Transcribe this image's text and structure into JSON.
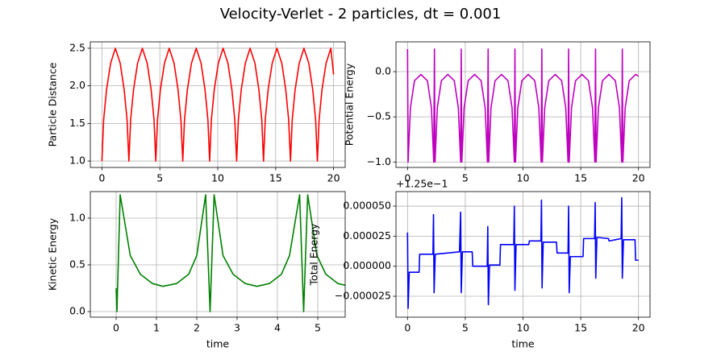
{
  "title": "Velocity-Verlet - 2 particles, dt = 0.001",
  "chart_data": [
    {
      "type": "line",
      "ylabel": "Particle Distance",
      "color": "#ff0000",
      "grid": true,
      "xlim": [
        -1,
        21
      ],
      "ylim": [
        0.915,
        2.585
      ],
      "xticks": [
        0,
        5,
        10,
        15,
        20
      ],
      "yticks": [
        {
          "value": 1,
          "label": "1.0"
        },
        1.5,
        {
          "value": 2,
          "label": "2.0"
        },
        2.5
      ],
      "x": [
        0,
        0.15,
        0.4,
        0.75,
        1.16,
        1.58,
        1.92,
        2.17,
        2.33,
        2.48,
        2.73,
        3.08,
        3.49,
        3.91,
        4.25,
        4.5,
        4.65,
        4.8,
        5.05,
        5.4,
        5.81,
        6.23,
        6.57,
        6.82,
        6.98,
        7.13,
        7.38,
        7.73,
        8.14,
        8.56,
        8.9,
        9.15,
        9.3,
        9.45,
        9.7,
        10.05,
        10.46,
        10.88,
        11.22,
        11.47,
        11.63,
        11.78,
        12.03,
        12.38,
        12.79,
        13.21,
        13.55,
        13.8,
        13.95,
        14.1,
        14.35,
        14.7,
        15.11,
        15.53,
        15.87,
        16.12,
        16.28,
        16.43,
        16.68,
        17.03,
        17.44,
        17.86,
        18.2,
        18.45,
        18.6,
        18.75,
        19.0,
        19.35,
        19.76,
        20.0
      ],
      "values": [
        1.0,
        1.55,
        1.95,
        2.3,
        2.5,
        2.3,
        1.95,
        1.55,
        1.0,
        1.55,
        1.95,
        2.3,
        2.5,
        2.3,
        1.95,
        1.55,
        1.0,
        1.55,
        1.95,
        2.3,
        2.5,
        2.3,
        1.95,
        1.55,
        1.0,
        1.55,
        1.95,
        2.3,
        2.5,
        2.3,
        1.95,
        1.55,
        1.0,
        1.55,
        1.95,
        2.3,
        2.5,
        2.3,
        1.95,
        1.55,
        1.0,
        1.55,
        1.95,
        2.3,
        2.5,
        2.3,
        1.95,
        1.55,
        1.0,
        1.55,
        1.95,
        2.3,
        2.5,
        2.3,
        1.95,
        1.55,
        1.0,
        1.55,
        1.95,
        2.3,
        2.5,
        2.3,
        1.95,
        1.55,
        1.0,
        1.55,
        1.95,
        2.3,
        2.5,
        2.15
      ]
    },
    {
      "type": "line",
      "ylabel": "Potential Energy",
      "color": "#bf00bf",
      "grid": true,
      "xlim": [
        -1,
        21
      ],
      "ylim": [
        -1.06,
        0.33
      ],
      "xticks": [
        0,
        5,
        10,
        15,
        20
      ],
      "yticks": [
        {
          "value": -1,
          "label": "−1.0"
        },
        {
          "value": -0.5,
          "label": "−0.5"
        },
        {
          "value": 0,
          "label": "0.0"
        }
      ],
      "x": [
        0,
        0.05,
        0.25,
        0.6,
        1.16,
        1.72,
        2.07,
        2.27,
        2.33,
        2.38,
        2.58,
        2.93,
        3.49,
        4.05,
        4.4,
        4.6,
        4.65,
        4.7,
        4.9,
        5.25,
        5.81,
        6.37,
        6.72,
        6.92,
        6.98,
        7.03,
        7.23,
        7.58,
        8.14,
        8.7,
        9.05,
        9.25,
        9.3,
        9.35,
        9.55,
        9.9,
        10.46,
        11.02,
        11.37,
        11.57,
        11.63,
        11.68,
        11.88,
        12.23,
        12.79,
        13.35,
        13.7,
        13.9,
        13.95,
        14.0,
        14.2,
        14.55,
        15.11,
        15.67,
        16.02,
        16.22,
        16.28,
        16.33,
        16.53,
        16.88,
        17.44,
        18.0,
        18.35,
        18.55,
        18.6,
        18.65,
        18.85,
        19.2,
        19.76,
        20.0
      ],
      "values": [
        0.25,
        -1.0,
        -0.4,
        -0.1,
        -0.03,
        -0.1,
        -0.4,
        -1.0,
        0.25,
        -1.0,
        -0.4,
        -0.1,
        -0.03,
        -0.1,
        -0.4,
        -1.0,
        0.25,
        -1.0,
        -0.4,
        -0.1,
        -0.03,
        -0.1,
        -0.4,
        -1.0,
        0.25,
        -1.0,
        -0.4,
        -0.1,
        -0.03,
        -0.1,
        -0.4,
        -1.0,
        0.25,
        -1.0,
        -0.4,
        -0.1,
        -0.03,
        -0.1,
        -0.4,
        -1.0,
        0.25,
        -1.0,
        -0.4,
        -0.1,
        -0.03,
        -0.1,
        -0.4,
        -1.0,
        0.25,
        -1.0,
        -0.4,
        -0.1,
        -0.03,
        -0.1,
        -0.4,
        -1.0,
        0.25,
        -1.0,
        -0.4,
        -0.1,
        -0.03,
        -0.1,
        -0.4,
        -1.0,
        0.25,
        -1.0,
        -0.4,
        -0.1,
        -0.03,
        -0.05
      ]
    },
    {
      "type": "line",
      "xlabel": "time",
      "ylabel": "Kinetic Energy",
      "color": "#008000",
      "grid": true,
      "xlim": [
        -0.64,
        5.68
      ],
      "ylim": [
        -0.06,
        1.284
      ],
      "xticks": [
        0,
        1,
        2,
        3,
        4,
        5
      ],
      "yticks": [
        {
          "value": 0,
          "label": "0.0"
        },
        0.5,
        {
          "value": 1,
          "label": "1.0"
        }
      ],
      "x": [
        0,
        0.02,
        0.1,
        0.35,
        0.6,
        0.9,
        1.16,
        1.5,
        1.8,
        2.0,
        2.22,
        2.33,
        2.43,
        2.65,
        2.9,
        3.2,
        3.49,
        3.8,
        4.1,
        4.3,
        4.55,
        4.65,
        4.75,
        4.98,
        5.2,
        5.5,
        5.7
      ],
      "values": [
        0.25,
        0.0,
        1.25,
        0.6,
        0.4,
        0.3,
        0.27,
        0.3,
        0.4,
        0.6,
        1.25,
        0.0,
        1.25,
        0.6,
        0.4,
        0.3,
        0.27,
        0.3,
        0.4,
        0.6,
        1.25,
        0.0,
        1.25,
        0.6,
        0.4,
        0.3,
        0.28
      ]
    },
    {
      "type": "line",
      "xlabel": "time",
      "ylabel": "Total Energy",
      "offset_text": "+1.25e−1",
      "color": "#0000ff",
      "grid": true,
      "xlim": [
        -1,
        21
      ],
      "ylim": [
        -4.24e-05,
        6.21e-05
      ],
      "xticks": [
        0,
        5,
        10,
        15,
        20
      ],
      "yticks": [
        {
          "value": -2.5e-05,
          "label": "−0.000025"
        },
        {
          "value": 0,
          "label": "0.000000"
        },
        {
          "value": 2.5e-05,
          "label": "0.000025"
        },
        {
          "value": 5e-05,
          "label": "0.000050"
        }
      ],
      "x": [
        0,
        0.05,
        0.15,
        1.0,
        1.05,
        2.2,
        2.25,
        2.3,
        2.4,
        4.5,
        4.6,
        4.65,
        4.75,
        5.6,
        5.65,
        6.9,
        6.95,
        7.0,
        7.1,
        8.0,
        8.05,
        9.2,
        9.25,
        9.3,
        9.4,
        10.5,
        10.55,
        11.55,
        11.6,
        11.65,
        11.75,
        12.9,
        12.95,
        13.9,
        13.95,
        14.0,
        14.1,
        15.2,
        15.25,
        16.2,
        16.25,
        16.3,
        16.4,
        17.4,
        17.45,
        18.5,
        18.55,
        18.6,
        18.7,
        19.7,
        19.75,
        20.0
      ],
      "values": [
        2.8e-05,
        -3.5e-05,
        -5e-06,
        -5e-06,
        1e-05,
        1e-05,
        4.3e-05,
        -2.2e-05,
        1e-05,
        1.2e-05,
        4.5e-05,
        -2.2e-05,
        1.2e-05,
        1.2e-05,
        0,
        0,
        3.3e-05,
        -3.2e-05,
        1e-06,
        1e-06,
        1.8e-05,
        1.8e-05,
        5e-05,
        -2e-05,
        1.8e-05,
        1.8e-05,
        2.1e-05,
        2.1e-05,
        5.5e-05,
        -1.8e-05,
        2e-05,
        2e-05,
        1.1e-05,
        1.1e-05,
        5e-05,
        -2.2e-05,
        8e-06,
        8e-06,
        2.3e-05,
        2.3e-05,
        5.3e-05,
        -1e-05,
        2.4e-05,
        2.3e-05,
        2.1e-05,
        2.3e-05,
        5.7e-05,
        -1e-05,
        2.2e-05,
        2.2e-05,
        5e-06,
        5e-06
      ]
    }
  ]
}
